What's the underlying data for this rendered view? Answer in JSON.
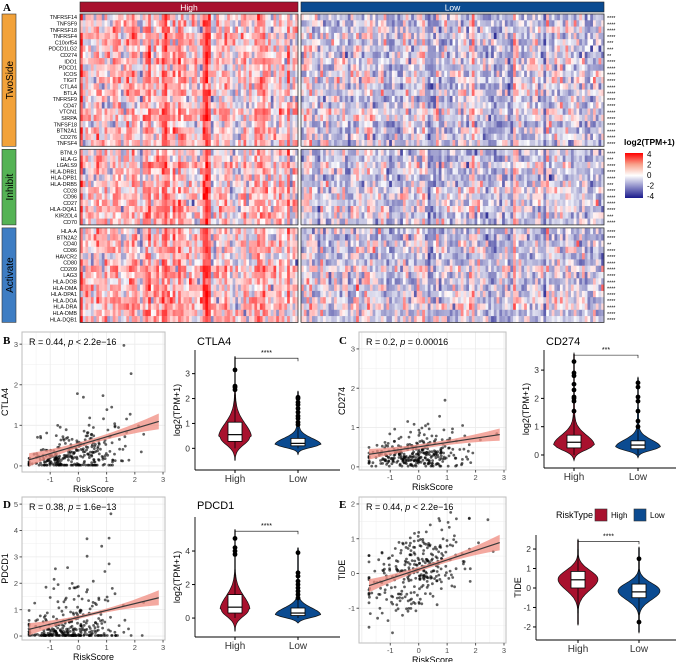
{
  "colors": {
    "high": "#a8112e",
    "low": "#0b4b91",
    "twoside": "#f2a23a",
    "inhibit": "#55b355",
    "activate": "#3e7dc3",
    "heat_pos": "#ff0000",
    "heat_neg": "#1a1a8c",
    "fit_line": "#3a3a3a",
    "ribbon": "#f08c80"
  },
  "panel_letters": {
    "a": "A",
    "b": "B",
    "c": "C",
    "d": "D",
    "e": "E"
  },
  "chart_data": [
    {
      "type": "heatmap",
      "id": "heatmap",
      "column_groups": [
        {
          "label": "High",
          "n_columns": 80,
          "mean": 0.5
        },
        {
          "label": "Low",
          "n_columns": 110,
          "mean": -0.45
        }
      ],
      "legend": {
        "title": "log2(TPM+1)",
        "ticks": [
          "4",
          "2",
          "0",
          "-2",
          "-4"
        ],
        "range": [
          -4,
          4
        ]
      },
      "row_groups": [
        {
          "label": "TwoSide",
          "genes": [
            "TNFRSF14",
            "TNFSF9",
            "TNFRSF18",
            "TNFRSF4",
            "C10orf54",
            "PDCD1LG2",
            "CD274",
            "IDO1",
            "PDCD1",
            "ICOS",
            "TIGIT",
            "CTLA4",
            "BTLA",
            "TNFRSF9",
            "CD47",
            "VTCN1",
            "SIRPA",
            "TNFSF18",
            "BTN2A1",
            "CD276",
            "TNFSF4"
          ],
          "significance": [
            "****",
            "****",
            "****",
            "****",
            "***",
            "***",
            "**",
            "****",
            "****",
            "****",
            "****",
            "****",
            "****",
            "****",
            "****",
            "****",
            "****",
            "****",
            "****",
            "****",
            "****"
          ]
        },
        {
          "label": "Inhibit",
          "genes": [
            "BTNL9",
            "HLA-G",
            "LGALS9",
            "HLA-DRB1",
            "HLA-DPB1",
            "HLA-DRB5",
            "CD28",
            "CD96",
            "CD27",
            "HLA-DQA1",
            "KIR2DL4",
            "CD70"
          ],
          "significance": [
            "****",
            "***",
            "****",
            "****",
            "****",
            "***",
            "****",
            "****",
            "****",
            "****",
            "***",
            "****"
          ]
        },
        {
          "label": "Activate",
          "genes": [
            "HLA-A",
            "BTN2A2",
            "CD40",
            "CD86",
            "HAVCR2",
            "CD80",
            "CD209",
            "LAG3",
            "HLA-DOB",
            "HLA-DMA",
            "HLA-DPA1",
            "HLA-DOA",
            "HLA-DRA",
            "HLA-DMB",
            "HLA-DQB1"
          ],
          "significance": [
            "****",
            "****",
            "**",
            "****",
            "****",
            "****",
            "****",
            "****",
            "****",
            "****",
            "****",
            "****",
            "****",
            "****",
            "****"
          ]
        }
      ]
    },
    {
      "type": "scatter",
      "id": "b",
      "xlabel": "RiskScore",
      "ylabel": "CTLA4",
      "annotation": {
        "r": "R = 0.44, ",
        "p": "p",
        "rest": " < 2.2e−16"
      },
      "xticks": [
        "-1",
        "0",
        "1",
        "2",
        "3"
      ],
      "xtick_values": [
        -1,
        0,
        1,
        2,
        3
      ],
      "yticks": [
        "0",
        "1",
        "2",
        "3"
      ],
      "ytick_values": [
        0,
        1,
        2,
        3
      ],
      "xlim": [
        -2.0,
        3.07
      ],
      "ylim": [
        -0.15,
        3.3
      ],
      "n": 300,
      "fit": {
        "intercept": 0.51,
        "slope": 0.206
      },
      "noise": {
        "kind": "skew",
        "scale": 0.45
      },
      "seed": 11
    },
    {
      "type": "violin",
      "id": "b",
      "title": "CTLA4",
      "ylabel": "log2(TPM+1)",
      "categories": [
        "High",
        "Low"
      ],
      "yticks": [
        "0",
        "1",
        "2",
        "3"
      ],
      "ytick_values": [
        0,
        1,
        2,
        3
      ],
      "ylim": [
        -0.87,
        3.95
      ],
      "significance": "****",
      "groups": [
        {
          "min": -0.5,
          "max": 3.7,
          "mode": 0.45,
          "sd_down": 0.3,
          "sd_up": 0.55,
          "tail": 0.12,
          "density_scale": 0.7,
          "q1": 0.28,
          "median": 0.55,
          "q3": 1.05,
          "whisker_low": 0.0,
          "whisker_high": 2.2,
          "outliers": [
            2.35,
            2.45,
            2.5,
            3.15
          ]
        },
        {
          "min": -0.25,
          "max": 2.3,
          "mode": 0.15,
          "sd_down": 0.12,
          "sd_up": 0.25,
          "tail": 0.1,
          "density_scale": 1.0,
          "q1": 0.1,
          "median": 0.2,
          "q3": 0.4,
          "whisker_low": 0.0,
          "whisker_high": 0.85,
          "outliers": [
            0.95,
            1.05,
            1.2,
            1.3,
            1.45,
            1.6,
            1.75,
            1.85,
            2.0,
            2.05
          ]
        }
      ]
    },
    {
      "type": "scatter",
      "id": "c",
      "xlabel": "RiskScore",
      "ylabel": "CD274",
      "annotation": {
        "r": "R = 0.2, ",
        "p": "p",
        "rest": " = 0.00016"
      },
      "xticks": [
        "-1",
        "0",
        "1",
        "2",
        "3"
      ],
      "xtick_values": [
        -1,
        0,
        1,
        2,
        3
      ],
      "yticks": [
        "0",
        "1",
        "2",
        "3"
      ],
      "ytick_values": [
        0,
        1,
        2,
        3
      ],
      "xlim": [
        -2.1,
        3.07
      ],
      "ylim": [
        -0.08,
        3.43
      ],
      "n": 300,
      "fit": {
        "intercept": 0.51,
        "slope": 0.109
      },
      "noise": {
        "kind": "skew",
        "scale": 0.32
      },
      "seed": 23
    },
    {
      "type": "violin",
      "id": "c",
      "title": "CD274",
      "ylabel": "log2(TPM+1)",
      "categories": [
        "High",
        "Low"
      ],
      "yticks": [
        "0",
        "1",
        "2",
        "3"
      ],
      "ytick_values": [
        0,
        1,
        2,
        3
      ],
      "ylim": [
        -0.46,
        3.71
      ],
      "significance": "***",
      "groups": [
        {
          "min": -0.2,
          "max": 3.6,
          "mode": 0.35,
          "sd_down": 0.18,
          "sd_up": 0.35,
          "tail": 0.08,
          "density_scale": 0.9,
          "q1": 0.25,
          "median": 0.45,
          "q3": 0.7,
          "whisker_low": 0.0,
          "whisker_high": 1.4,
          "outliers": [
            1.55,
            1.9,
            2.0,
            2.05,
            2.3,
            2.5,
            2.8,
            2.9,
            3.3
          ]
        },
        {
          "min": -0.1,
          "max": 2.75,
          "mode": 0.28,
          "sd_down": 0.12,
          "sd_up": 0.25,
          "tail": 0.07,
          "density_scale": 1.0,
          "q1": 0.22,
          "median": 0.35,
          "q3": 0.5,
          "whisker_low": 0.0,
          "whisker_high": 0.95,
          "outliers": [
            1.0,
            1.2,
            1.55,
            1.9,
            2.05,
            2.4,
            2.55
          ]
        }
      ]
    },
    {
      "type": "scatter",
      "id": "d",
      "xlabel": "RiskScore",
      "ylabel": "PDCD1",
      "annotation": {
        "r": "R = 0.38, ",
        "p": "p",
        "rest": " = 1.6e−13"
      },
      "xticks": [
        "-1",
        "0",
        "1",
        "2",
        "3"
      ],
      "xtick_values": [
        -1,
        0,
        1,
        2,
        3
      ],
      "yticks": [
        "0",
        "1",
        "2",
        "3",
        "4",
        "5"
      ],
      "ytick_values": [
        0,
        1,
        2,
        3,
        4,
        5
      ],
      "xlim": [
        -2.0,
        3.07
      ],
      "ylim": [
        -0.15,
        5.27
      ],
      "n": 300,
      "fit": {
        "intercept": 0.71,
        "slope": 0.26
      },
      "noise": {
        "kind": "skew",
        "scale": 0.75
      },
      "seed": 37
    },
    {
      "type": "violin",
      "id": "d",
      "title": "PDCD1",
      "ylabel": "log2(TPM+1)",
      "categories": [
        "High",
        "Low"
      ],
      "yticks": [
        "0",
        "2",
        "4"
      ],
      "ytick_values": [
        0,
        2,
        4
      ],
      "ylim": [
        -1.13,
        6.03
      ],
      "significance": "****",
      "groups": [
        {
          "min": -0.8,
          "max": 5.3,
          "mode": 0.5,
          "sd_down": 0.4,
          "sd_up": 0.8,
          "tail": 0.1,
          "density_scale": 0.65,
          "q1": 0.3,
          "median": 0.65,
          "q3": 1.4,
          "whisker_low": 0.0,
          "whisker_high": 3.5,
          "outliers": [
            3.8,
            4.0,
            4.2,
            4.75
          ]
        },
        {
          "min": -0.3,
          "max": 4.2,
          "mode": 0.2,
          "sd_down": 0.18,
          "sd_up": 0.4,
          "tail": 0.08,
          "density_scale": 1.0,
          "q1": 0.15,
          "median": 0.3,
          "q3": 0.6,
          "whisker_low": 0.0,
          "whisker_high": 1.1,
          "outliers": [
            1.2,
            1.4,
            1.6,
            1.8,
            2.0,
            2.2,
            2.5,
            2.7,
            3.9
          ]
        }
      ]
    },
    {
      "type": "scatter",
      "id": "e",
      "xlabel": "RiskScore",
      "ylabel": "TIDE",
      "annotation": {
        "r": "R = 0.44, ",
        "p": "p",
        "rest": " < 2.2e−16"
      },
      "xticks": [
        "-1",
        "0",
        "1",
        "2",
        "3"
      ],
      "xtick_values": [
        -1,
        0,
        1,
        2,
        3
      ],
      "yticks": [
        "-1",
        "0",
        "1",
        "2"
      ],
      "ytick_values": [
        -1,
        0,
        1,
        2
      ],
      "xlim": [
        -2.1,
        3.07
      ],
      "ylim": [
        -2.0,
        2.2
      ],
      "n": 300,
      "fit": {
        "intercept": 0.12,
        "slope": 0.27
      },
      "noise": {
        "kind": "normal",
        "scale": 0.55
      },
      "seed": 53
    },
    {
      "type": "violin",
      "id": "e",
      "title": "",
      "ylabel": "TIDE",
      "categories": [
        "High",
        "Low"
      ],
      "yticks": [
        "-2",
        "-1",
        "0",
        "1",
        "2"
      ],
      "ytick_values": [
        -2,
        -1,
        0,
        1,
        2
      ],
      "ylim": [
        -2.67,
        2.72
      ],
      "significance": "****",
      "legend": {
        "title": "RiskType",
        "entries": [
          "High",
          "Low"
        ]
      },
      "groups": [
        {
          "min": -1.9,
          "max": 2.5,
          "mode": 0.45,
          "sd_down": 0.55,
          "sd_up": 0.45,
          "tail": 0.0,
          "density_scale": 0.95,
          "q1": 0.0,
          "median": 0.42,
          "q3": 0.85,
          "whisker_low": -1.3,
          "whisker_high": 2.0,
          "outliers": []
        },
        {
          "min": -2.3,
          "max": 2.1,
          "mode": -0.15,
          "sd_down": 0.45,
          "sd_up": 0.4,
          "tail": 0.0,
          "density_scale": 1.0,
          "q1": -0.5,
          "median": -0.2,
          "q3": 0.2,
          "whisker_low": -1.6,
          "whisker_high": 1.4,
          "outliers": [
            1.5,
            -1.75
          ]
        }
      ]
    }
  ]
}
